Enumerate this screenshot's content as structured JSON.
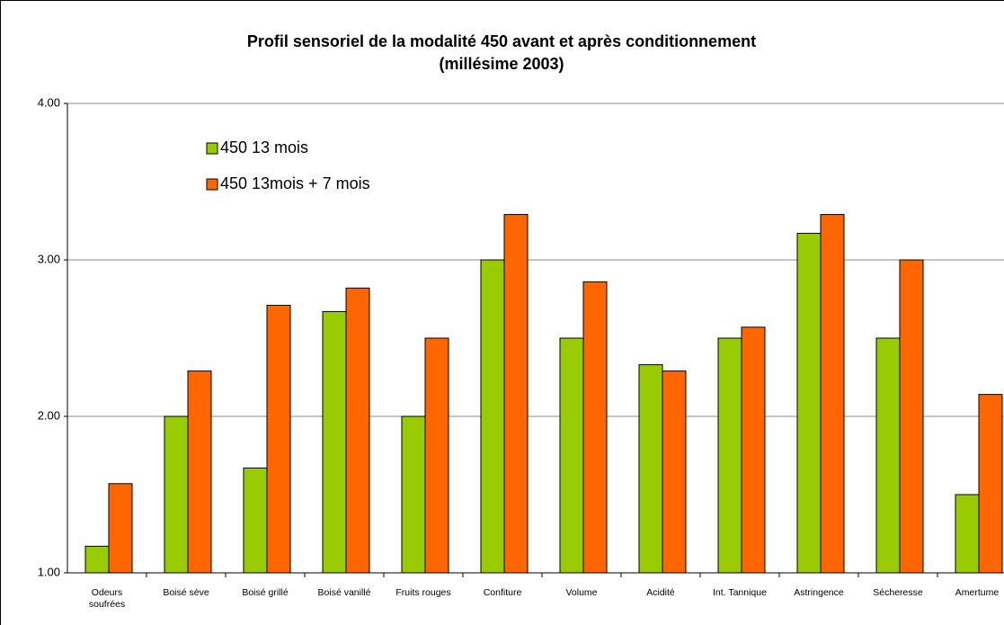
{
  "chart_data": {
    "type": "bar",
    "title": "Profil sensoriel de la modalité 450 avant et après conditionnement",
    "subtitle": "(millésime 2003)",
    "categories": [
      "Odeurs soufrées",
      "Boisé sève",
      "Boisé grillé",
      "Boisé vanillé",
      "Fruits rouges",
      "Confiture",
      "Volume",
      "Acidité",
      "Int. Tannique",
      "Astringence",
      "Sécheresse",
      "Amertume"
    ],
    "series": [
      {
        "name": "450 13 mois",
        "color": "#99cc00",
        "values": [
          1.17,
          2.0,
          1.67,
          2.67,
          2.0,
          3.0,
          2.5,
          2.33,
          2.5,
          3.17,
          2.5,
          1.5
        ]
      },
      {
        "name": "450 13mois + 7 mois",
        "color": "#ff6600",
        "values": [
          1.57,
          2.29,
          2.71,
          2.82,
          2.5,
          3.29,
          2.86,
          2.29,
          2.57,
          3.29,
          3.0,
          2.14
        ]
      }
    ],
    "ylim": [
      1,
      4
    ],
    "yticks": [
      {
        "value": 1,
        "label": "1.00"
      },
      {
        "value": 2,
        "label": "2.00"
      },
      {
        "value": 3,
        "label": "3.00"
      },
      {
        "value": 4,
        "label": "4.00"
      }
    ],
    "grid": true,
    "legend": "top-left"
  }
}
